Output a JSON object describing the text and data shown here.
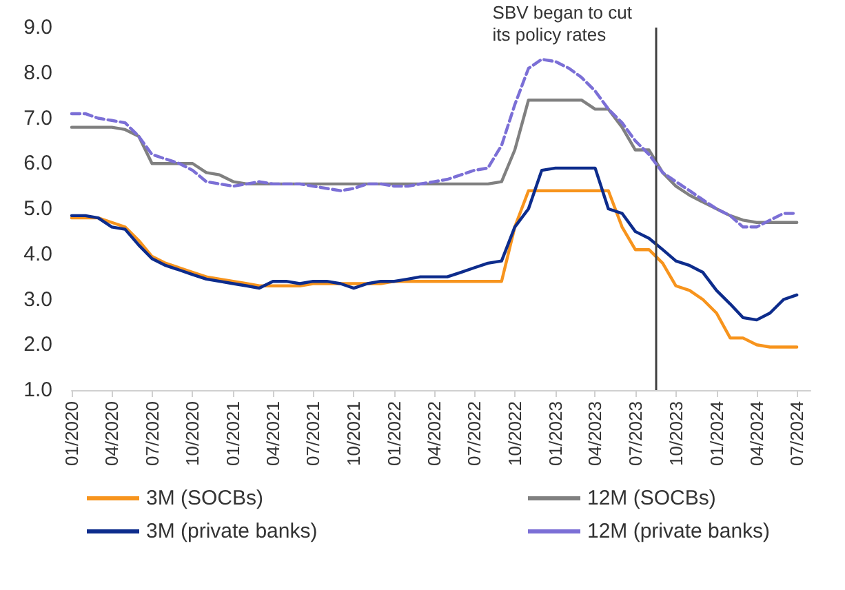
{
  "chart_data": {
    "type": "line",
    "x": [
      "2020-01",
      "2020-02",
      "2020-03",
      "2020-04",
      "2020-05",
      "2020-06",
      "2020-07",
      "2020-08",
      "2020-09",
      "2020-10",
      "2020-11",
      "2020-12",
      "2021-01",
      "2021-02",
      "2021-03",
      "2021-04",
      "2021-05",
      "2021-06",
      "2021-07",
      "2021-08",
      "2021-09",
      "2021-10",
      "2021-11",
      "2021-12",
      "2022-01",
      "2022-02",
      "2022-03",
      "2022-04",
      "2022-05",
      "2022-06",
      "2022-07",
      "2022-08",
      "2022-09",
      "2022-10",
      "2022-11",
      "2022-12",
      "2023-01",
      "2023-02",
      "2023-03",
      "2023-04",
      "2023-05",
      "2023-06",
      "2023-07",
      "2023-08",
      "2023-09",
      "2023-10",
      "2023-11",
      "2023-12",
      "2024-01",
      "2024-02",
      "2024-03",
      "2024-04",
      "2024-05",
      "2024-06",
      "2024-07"
    ],
    "series": [
      {
        "name": "3M (SOCBs)",
        "color": "#f7941d",
        "line_style": "solid",
        "values": [
          4.8,
          4.8,
          4.8,
          4.7,
          4.6,
          4.3,
          3.95,
          3.8,
          3.7,
          3.6,
          3.5,
          3.45,
          3.4,
          3.35,
          3.3,
          3.3,
          3.3,
          3.3,
          3.35,
          3.35,
          3.35,
          3.35,
          3.35,
          3.35,
          3.4,
          3.4,
          3.4,
          3.4,
          3.4,
          3.4,
          3.4,
          3.4,
          3.4,
          4.6,
          5.4,
          5.4,
          5.4,
          5.4,
          5.4,
          5.4,
          5.4,
          4.6,
          4.1,
          4.1,
          3.8,
          3.3,
          3.2,
          3.0,
          2.7,
          2.15,
          2.15,
          2.0,
          1.95,
          1.95,
          1.95
        ]
      },
      {
        "name": "12M (SOCBs)",
        "color": "#808080",
        "line_style": "solid",
        "values": [
          6.8,
          6.8,
          6.8,
          6.8,
          6.75,
          6.6,
          6.0,
          6.0,
          6.0,
          6.0,
          5.8,
          5.75,
          5.6,
          5.55,
          5.55,
          5.55,
          5.55,
          5.55,
          5.55,
          5.55,
          5.55,
          5.55,
          5.55,
          5.55,
          5.55,
          5.55,
          5.55,
          5.55,
          5.55,
          5.55,
          5.55,
          5.55,
          5.6,
          6.3,
          7.4,
          7.4,
          7.4,
          7.4,
          7.4,
          7.2,
          7.2,
          6.8,
          6.3,
          6.3,
          5.8,
          5.5,
          5.3,
          5.15,
          5.0,
          4.85,
          4.75,
          4.7,
          4.7,
          4.7,
          4.7
        ]
      },
      {
        "name": "3M (private banks)",
        "color": "#0d2c8c",
        "line_style": "solid",
        "values": [
          4.85,
          4.85,
          4.8,
          4.6,
          4.55,
          4.2,
          3.9,
          3.75,
          3.65,
          3.55,
          3.45,
          3.4,
          3.35,
          3.3,
          3.25,
          3.4,
          3.4,
          3.35,
          3.4,
          3.4,
          3.35,
          3.25,
          3.35,
          3.4,
          3.4,
          3.45,
          3.5,
          3.5,
          3.5,
          3.6,
          3.7,
          3.8,
          3.85,
          4.6,
          5.0,
          5.85,
          5.9,
          5.9,
          5.9,
          5.9,
          5.0,
          4.9,
          4.5,
          4.35,
          4.1,
          3.85,
          3.75,
          3.6,
          3.2,
          2.9,
          2.6,
          2.55,
          2.7,
          3.0,
          3.1
        ]
      },
      {
        "name": "12M (private banks)",
        "color": "#7b6fd6",
        "line_style": "dashed",
        "values": [
          7.1,
          7.1,
          7.0,
          6.95,
          6.9,
          6.6,
          6.2,
          6.1,
          6.0,
          5.85,
          5.6,
          5.55,
          5.5,
          5.55,
          5.6,
          5.55,
          5.55,
          5.55,
          5.5,
          5.45,
          5.4,
          5.45,
          5.55,
          5.55,
          5.5,
          5.5,
          5.55,
          5.6,
          5.65,
          5.75,
          5.85,
          5.9,
          6.4,
          7.3,
          8.1,
          8.3,
          8.25,
          8.1,
          7.9,
          7.6,
          7.2,
          6.9,
          6.5,
          6.2,
          5.8,
          5.6,
          5.4,
          5.2,
          5.0,
          4.85,
          4.6,
          4.6,
          4.75,
          4.9,
          4.9
        ]
      }
    ],
    "xlim": [
      "2020-01",
      "2024-08"
    ],
    "xticks": [
      {
        "value": "2020-01",
        "label": "01/2020"
      },
      {
        "value": "2020-04",
        "label": "04/2020"
      },
      {
        "value": "2020-07",
        "label": "07/2020"
      },
      {
        "value": "2020-10",
        "label": "10/2020"
      },
      {
        "value": "2021-01",
        "label": "01/2021"
      },
      {
        "value": "2021-04",
        "label": "04/2021"
      },
      {
        "value": "2021-07",
        "label": "07/2021"
      },
      {
        "value": "2021-10",
        "label": "10/2021"
      },
      {
        "value": "2022-01",
        "label": "01/2022"
      },
      {
        "value": "2022-04",
        "label": "04/2022"
      },
      {
        "value": "2022-07",
        "label": "07/2022"
      },
      {
        "value": "2022-10",
        "label": "10/2022"
      },
      {
        "value": "2023-01",
        "label": "01/2023"
      },
      {
        "value": "2023-04",
        "label": "04/2023"
      },
      {
        "value": "2023-07",
        "label": "07/2023"
      },
      {
        "value": "2023-10",
        "label": "10/2023"
      },
      {
        "value": "2024-01",
        "label": "01/2024"
      },
      {
        "value": "2024-04",
        "label": "04/2024"
      },
      {
        "value": "2024-07",
        "label": "07/2024"
      }
    ],
    "ylim": [
      1,
      9
    ],
    "yticks": [
      {
        "value": 1,
        "label": "1.0"
      },
      {
        "value": 2,
        "label": "2.0"
      },
      {
        "value": 3,
        "label": "3.0"
      },
      {
        "value": 4,
        "label": "4.0"
      },
      {
        "value": 5,
        "label": "5.0"
      },
      {
        "value": 6,
        "label": "6.0"
      },
      {
        "value": 7,
        "label": "7.0"
      },
      {
        "value": 8,
        "label": "8.0"
      },
      {
        "value": 9,
        "label": "9.0"
      }
    ],
    "ref_lines": [
      {
        "axis": "x",
        "value": "2023-08-15",
        "label": "SBV began to cut its policy rates",
        "color": "#404040"
      }
    ],
    "grid": false,
    "legend": "bottom",
    "marker": "none"
  }
}
